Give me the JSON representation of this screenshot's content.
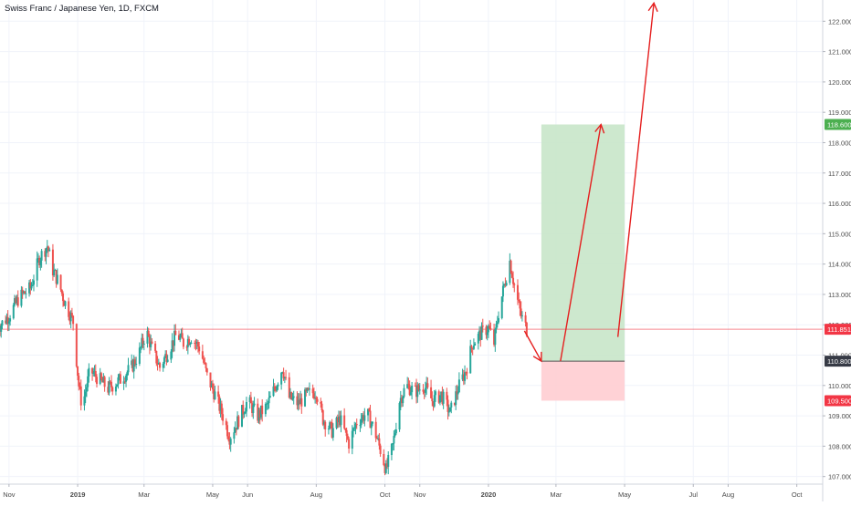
{
  "title": "Swiss Franc / Japanese Yen, 1D, FXCM",
  "chart_data": {
    "type": "candlestick",
    "title": "Swiss Franc / Japanese Yen, 1D, FXCM",
    "ylim": [
      106.75,
      122.7
    ],
    "y_ticks": [
      "107.000",
      "108.000",
      "109.000",
      "110.000",
      "111.000",
      "112.000",
      "113.000",
      "114.000",
      "115.000",
      "116.000",
      "117.000",
      "118.000",
      "119.000",
      "120.000",
      "121.000",
      "122.000"
    ],
    "x_ticks": [
      {
        "label": "Nov",
        "date": "2018-11-01"
      },
      {
        "label": "2019",
        "date": "2019-01-01"
      },
      {
        "label": "Mar",
        "date": "2019-03-01"
      },
      {
        "label": "May",
        "date": "2019-05-01"
      },
      {
        "label": "Jun",
        "date": "2019-06-01"
      },
      {
        "label": "Aug",
        "date": "2019-08-01"
      },
      {
        "label": "Oct",
        "date": "2019-10-01"
      },
      {
        "label": "Nov",
        "date": "2019-11-01"
      },
      {
        "label": "2020",
        "date": "2020-01-01"
      },
      {
        "label": "Mar",
        "date": "2020-03-01"
      },
      {
        "label": "May",
        "date": "2020-05-01"
      },
      {
        "label": "Jul",
        "date": "2020-07-01"
      },
      {
        "label": "Aug",
        "date": "2020-08-01"
      },
      {
        "label": "Oct",
        "date": "2020-10-01"
      }
    ],
    "price_path": [
      [
        "2018-10-22",
        111.9
      ],
      [
        "2018-11-01",
        112.3
      ],
      [
        "2018-11-10",
        112.9
      ],
      [
        "2018-11-20",
        113.2
      ],
      [
        "2018-11-28",
        114.2
      ],
      [
        "2018-12-05",
        114.6
      ],
      [
        "2018-12-10",
        113.8
      ],
      [
        "2018-12-15",
        113.4
      ],
      [
        "2018-12-20",
        112.8
      ],
      [
        "2018-12-28",
        112.1
      ],
      [
        "2019-01-02",
        110.0
      ],
      [
        "2019-01-05",
        109.3
      ],
      [
        "2019-01-12",
        110.5
      ],
      [
        "2019-01-20",
        110.2
      ],
      [
        "2019-01-28",
        109.9
      ],
      [
        "2019-02-08",
        110.2
      ],
      [
        "2019-02-18",
        110.6
      ],
      [
        "2019-02-25",
        111.1
      ],
      [
        "2019-03-03",
        111.8
      ],
      [
        "2019-03-08",
        111.2
      ],
      [
        "2019-03-15",
        110.6
      ],
      [
        "2019-03-22",
        111.1
      ],
      [
        "2019-03-30",
        111.7
      ],
      [
        "2019-04-05",
        111.4
      ],
      [
        "2019-04-12",
        111.6
      ],
      [
        "2019-04-20",
        111.2
      ],
      [
        "2019-04-26",
        110.3
      ],
      [
        "2019-05-03",
        109.7
      ],
      [
        "2019-05-10",
        109.0
      ],
      [
        "2019-05-16",
        108.3
      ],
      [
        "2019-05-23",
        108.8
      ],
      [
        "2019-06-01",
        109.5
      ],
      [
        "2019-06-10",
        109.0
      ],
      [
        "2019-06-18",
        109.3
      ],
      [
        "2019-06-26",
        110.0
      ],
      [
        "2019-07-02",
        110.6
      ],
      [
        "2019-07-08",
        109.6
      ],
      [
        "2019-07-16",
        109.4
      ],
      [
        "2019-07-24",
        109.7
      ],
      [
        "2019-08-01",
        109.8
      ],
      [
        "2019-08-07",
        108.9
      ],
      [
        "2019-08-15",
        108.5
      ],
      [
        "2019-08-22",
        108.9
      ],
      [
        "2019-08-30",
        108.1
      ],
      [
        "2019-09-06",
        108.8
      ],
      [
        "2019-09-15",
        109.1
      ],
      [
        "2019-09-22",
        108.5
      ],
      [
        "2019-09-30",
        107.5
      ],
      [
        "2019-10-02",
        107.2
      ],
      [
        "2019-10-08",
        108.0
      ],
      [
        "2019-10-14",
        109.5
      ],
      [
        "2019-10-20",
        110.0
      ],
      [
        "2019-10-28",
        109.8
      ],
      [
        "2019-11-05",
        110.0
      ],
      [
        "2019-11-12",
        109.5
      ],
      [
        "2019-11-20",
        109.7
      ],
      [
        "2019-11-28",
        109.1
      ],
      [
        "2019-12-05",
        109.9
      ],
      [
        "2019-12-12",
        110.5
      ],
      [
        "2019-12-18",
        111.4
      ],
      [
        "2019-12-25",
        111.7
      ],
      [
        "2020-01-01",
        111.9
      ],
      [
        "2020-01-06",
        111.4
      ],
      [
        "2020-01-10",
        112.4
      ],
      [
        "2020-01-15",
        113.3
      ],
      [
        "2020-01-20",
        114.1
      ],
      [
        "2020-01-25",
        113.1
      ],
      [
        "2020-01-30",
        112.3
      ],
      [
        "2020-02-04",
        111.85
      ]
    ],
    "current_price": {
      "label": "111.851",
      "value": 111.851,
      "color": "#f23645"
    },
    "position": {
      "type": "long",
      "target": {
        "label": "118.600",
        "value": 118.6,
        "color": "#4caf50"
      },
      "entry": {
        "label": "110.800",
        "value": 110.8,
        "color": "#363a45"
      },
      "stop": {
        "label": "109.500",
        "value": 109.5,
        "color": "#f23645"
      },
      "start_date": "2020-02-17",
      "end_date": "2020-05-01",
      "profit_fill": "#c8e6c9",
      "loss_fill": "#ffcdd2"
    },
    "arrows": [
      {
        "from": {
          "date": "2020-02-02",
          "value": 111.8
        },
        "to": {
          "date": "2020-02-17",
          "value": 110.8
        }
      },
      {
        "from": {
          "date": "2020-03-05",
          "value": 110.8
        },
        "to": {
          "date": "2020-04-10",
          "value": 118.6
        }
      },
      {
        "from": {
          "date": "2020-04-25",
          "value": 111.6
        },
        "to": {
          "date": "2020-05-27",
          "value": 122.6
        }
      }
    ],
    "colors": {
      "up": "#26a69a",
      "down": "#ef5350",
      "grid": "#f0f3fa",
      "axis_text": "#4a4a4a",
      "arrow": "#e51f1f"
    },
    "grid": true
  }
}
